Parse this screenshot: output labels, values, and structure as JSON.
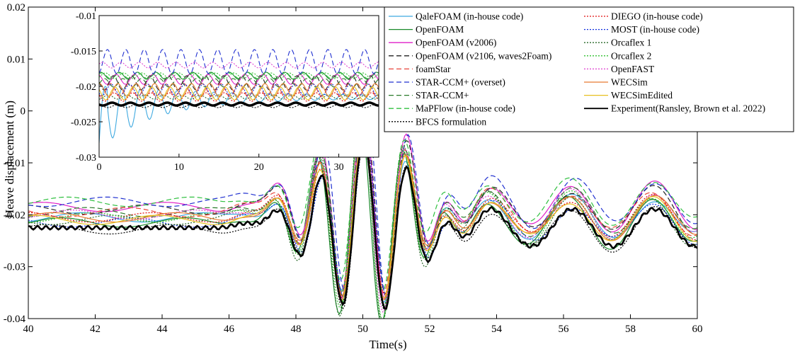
{
  "chart_data": {
    "type": "line",
    "xlabel": "Time(s)",
    "ylabel": "Heave displacement (m)",
    "xlim": [
      40,
      60
    ],
    "ylim": [
      -0.04,
      0.02
    ],
    "xticks": [
      "40",
      "42",
      "44",
      "46",
      "48",
      "50",
      "52",
      "54",
      "56",
      "58",
      "60"
    ],
    "yticks": [
      "-0.04",
      "-0.03",
      "-0.02",
      "-0.01",
      "0",
      "0.01",
      "0.02"
    ],
    "grid": false,
    "legend_position": "top-right",
    "inset": {
      "xlim": [
        0,
        35
      ],
      "ylim": [
        -0.03,
        -0.01
      ],
      "xticks": [
        "0",
        "10",
        "20",
        "30"
      ],
      "yticks": [
        "-0.03",
        "-0.025",
        "-0.02",
        "-0.015",
        "-0.01"
      ]
    },
    "series": [
      {
        "name": "QaleFOAM (in-house code)",
        "color": "#3fa9e0",
        "dash": "solid",
        "offset": -0.0205,
        "amp": 1.0,
        "phase": 0.03
      },
      {
        "name": "OpenFOAM",
        "color": "#1a8a2a",
        "dash": "solid",
        "offset": -0.0215,
        "amp": 1.2,
        "phase": 0.1
      },
      {
        "name": "OpenFOAM (v2006)",
        "color": "#e020c8",
        "dash": "solid",
        "offset": -0.0185,
        "amp": 1.15,
        "phase": 0.0
      },
      {
        "name": "OpenFOAM (v2106, waves2Foam)",
        "color": "#222222",
        "dash": "dashed",
        "offset": -0.019,
        "amp": 1.1,
        "phase": -0.02
      },
      {
        "name": "foamStar",
        "color": "#e8453a",
        "dash": "dashed",
        "offset": -0.0195,
        "amp": 1.05,
        "phase": 0.04
      },
      {
        "name": "STAR-CCM+ (overset)",
        "color": "#2030d0",
        "dash": "dashed",
        "offset": -0.0175,
        "amp": 1.2,
        "phase": -0.05
      },
      {
        "name": "STAR-CCM+",
        "color": "#2a7a2a",
        "dash": "dashed",
        "offset": -0.0195,
        "amp": 1.1,
        "phase": 0.02
      },
      {
        "name": "MaPFlow (in-house code)",
        "color": "#30c040",
        "dash": "dashed",
        "offset": -0.0175,
        "amp": 1.05,
        "phase": 0.06
      },
      {
        "name": "BFCS formulation",
        "color": "#000000",
        "dash": "dotted",
        "offset": -0.0228,
        "amp": 1.0,
        "phase": 0.0
      },
      {
        "name": "DIEGO (in-house code)",
        "color": "#e01010",
        "dash": "dotted",
        "offset": -0.0205,
        "amp": 1.0,
        "phase": 0.01
      },
      {
        "name": "MOST (in-house code)",
        "color": "#1030e0",
        "dash": "dotted",
        "offset": -0.0215,
        "amp": 0.95,
        "phase": -0.03
      },
      {
        "name": "Orcaflex 1",
        "color": "#2a6a2a",
        "dash": "dotted",
        "offset": -0.021,
        "amp": 1.3,
        "phase": 0.08
      },
      {
        "name": "Orcaflex 2",
        "color": "#30c030",
        "dash": "dotted",
        "offset": -0.0205,
        "amp": 1.25,
        "phase": 0.07
      },
      {
        "name": "OpenFAST",
        "color": "#e040d0",
        "dash": "dotted",
        "offset": -0.02,
        "amp": 1.15,
        "phase": 0.05
      },
      {
        "name": "WECSim",
        "color": "#e87a30",
        "dash": "solid",
        "offset": -0.0205,
        "amp": 1.0,
        "phase": 0.02
      },
      {
        "name": "WECSimEdited",
        "color": "#e8c020",
        "dash": "solid",
        "offset": -0.021,
        "amp": 1.0,
        "phase": 0.03
      },
      {
        "name": "Experiment(Ransley, Brown et al. 2022)",
        "color": "#000000",
        "dash": "solid",
        "offset": -0.0225,
        "amp": 1.0,
        "phase": 0.0,
        "bold": true
      }
    ],
    "legend_columns": [
      [
        "QaleFOAM (in-house code)",
        "OpenFOAM",
        "OpenFOAM (v2006)",
        "OpenFOAM (v2106, waves2Foam)",
        "foamStar",
        "STAR-CCM+ (overset)",
        "STAR-CCM+",
        "MaPFlow (in-house code)",
        "BFCS formulation"
      ],
      [
        "DIEGO (in-house code)",
        "MOST (in-house code)",
        "Orcaflex 1",
        "Orcaflex 2",
        "OpenFAST",
        "WECSim",
        "WECSimEdited",
        "Experiment(Ransley, Brown et al. 2022)"
      ]
    ]
  }
}
